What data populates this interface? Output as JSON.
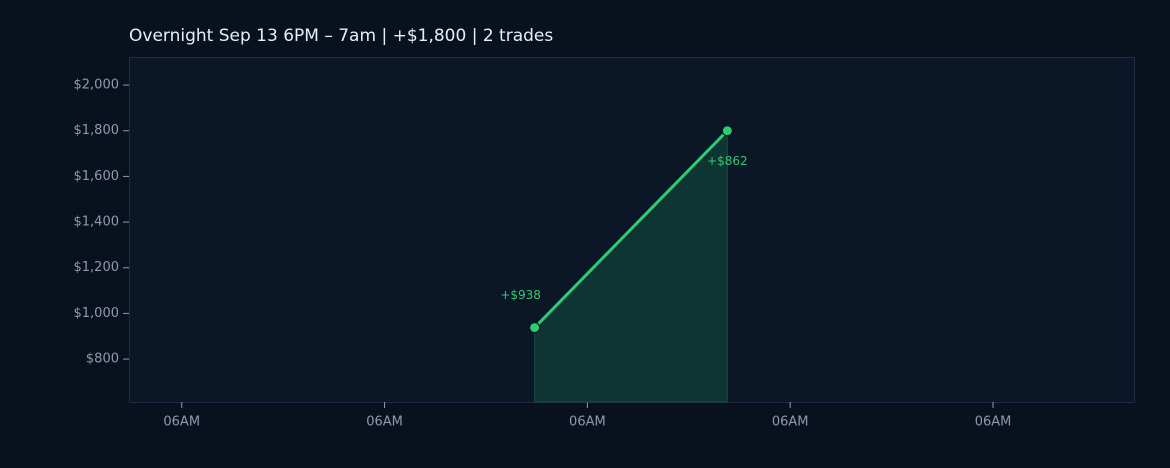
{
  "chart_data": {
    "type": "line",
    "title": "Overnight  Sep 13 6PM – 7am  |  +$1,800  |  2 trades",
    "x": [
      1.74,
      2.69
    ],
    "series": [
      {
        "color": "#2ecc71",
        "values": [
          938,
          1800
        ]
      }
    ],
    "annotations": [
      "+$938",
      "+$862"
    ],
    "xlim": [
      -0.26,
      4.7
    ],
    "xticks": [
      {
        "value": 0,
        "label": "06AM"
      },
      {
        "value": 1,
        "label": "06AM"
      },
      {
        "value": 2,
        "label": "06AM"
      },
      {
        "value": 3,
        "label": "06AM"
      },
      {
        "value": 4,
        "label": "06AM"
      }
    ],
    "ylim": [
      612,
      2123
    ],
    "yticks": [
      {
        "value": 800,
        "label": "$800"
      },
      {
        "value": 1000,
        "label": "$1,000"
      },
      {
        "value": 1200,
        "label": "$1,200"
      },
      {
        "value": 1400,
        "label": "$1,400"
      },
      {
        "value": 1600,
        "label": "$1,600"
      },
      {
        "value": 1800,
        "label": "$1,800"
      },
      {
        "value": 2000,
        "label": "$2,000"
      }
    ],
    "area_fill": "#0f3434"
  }
}
